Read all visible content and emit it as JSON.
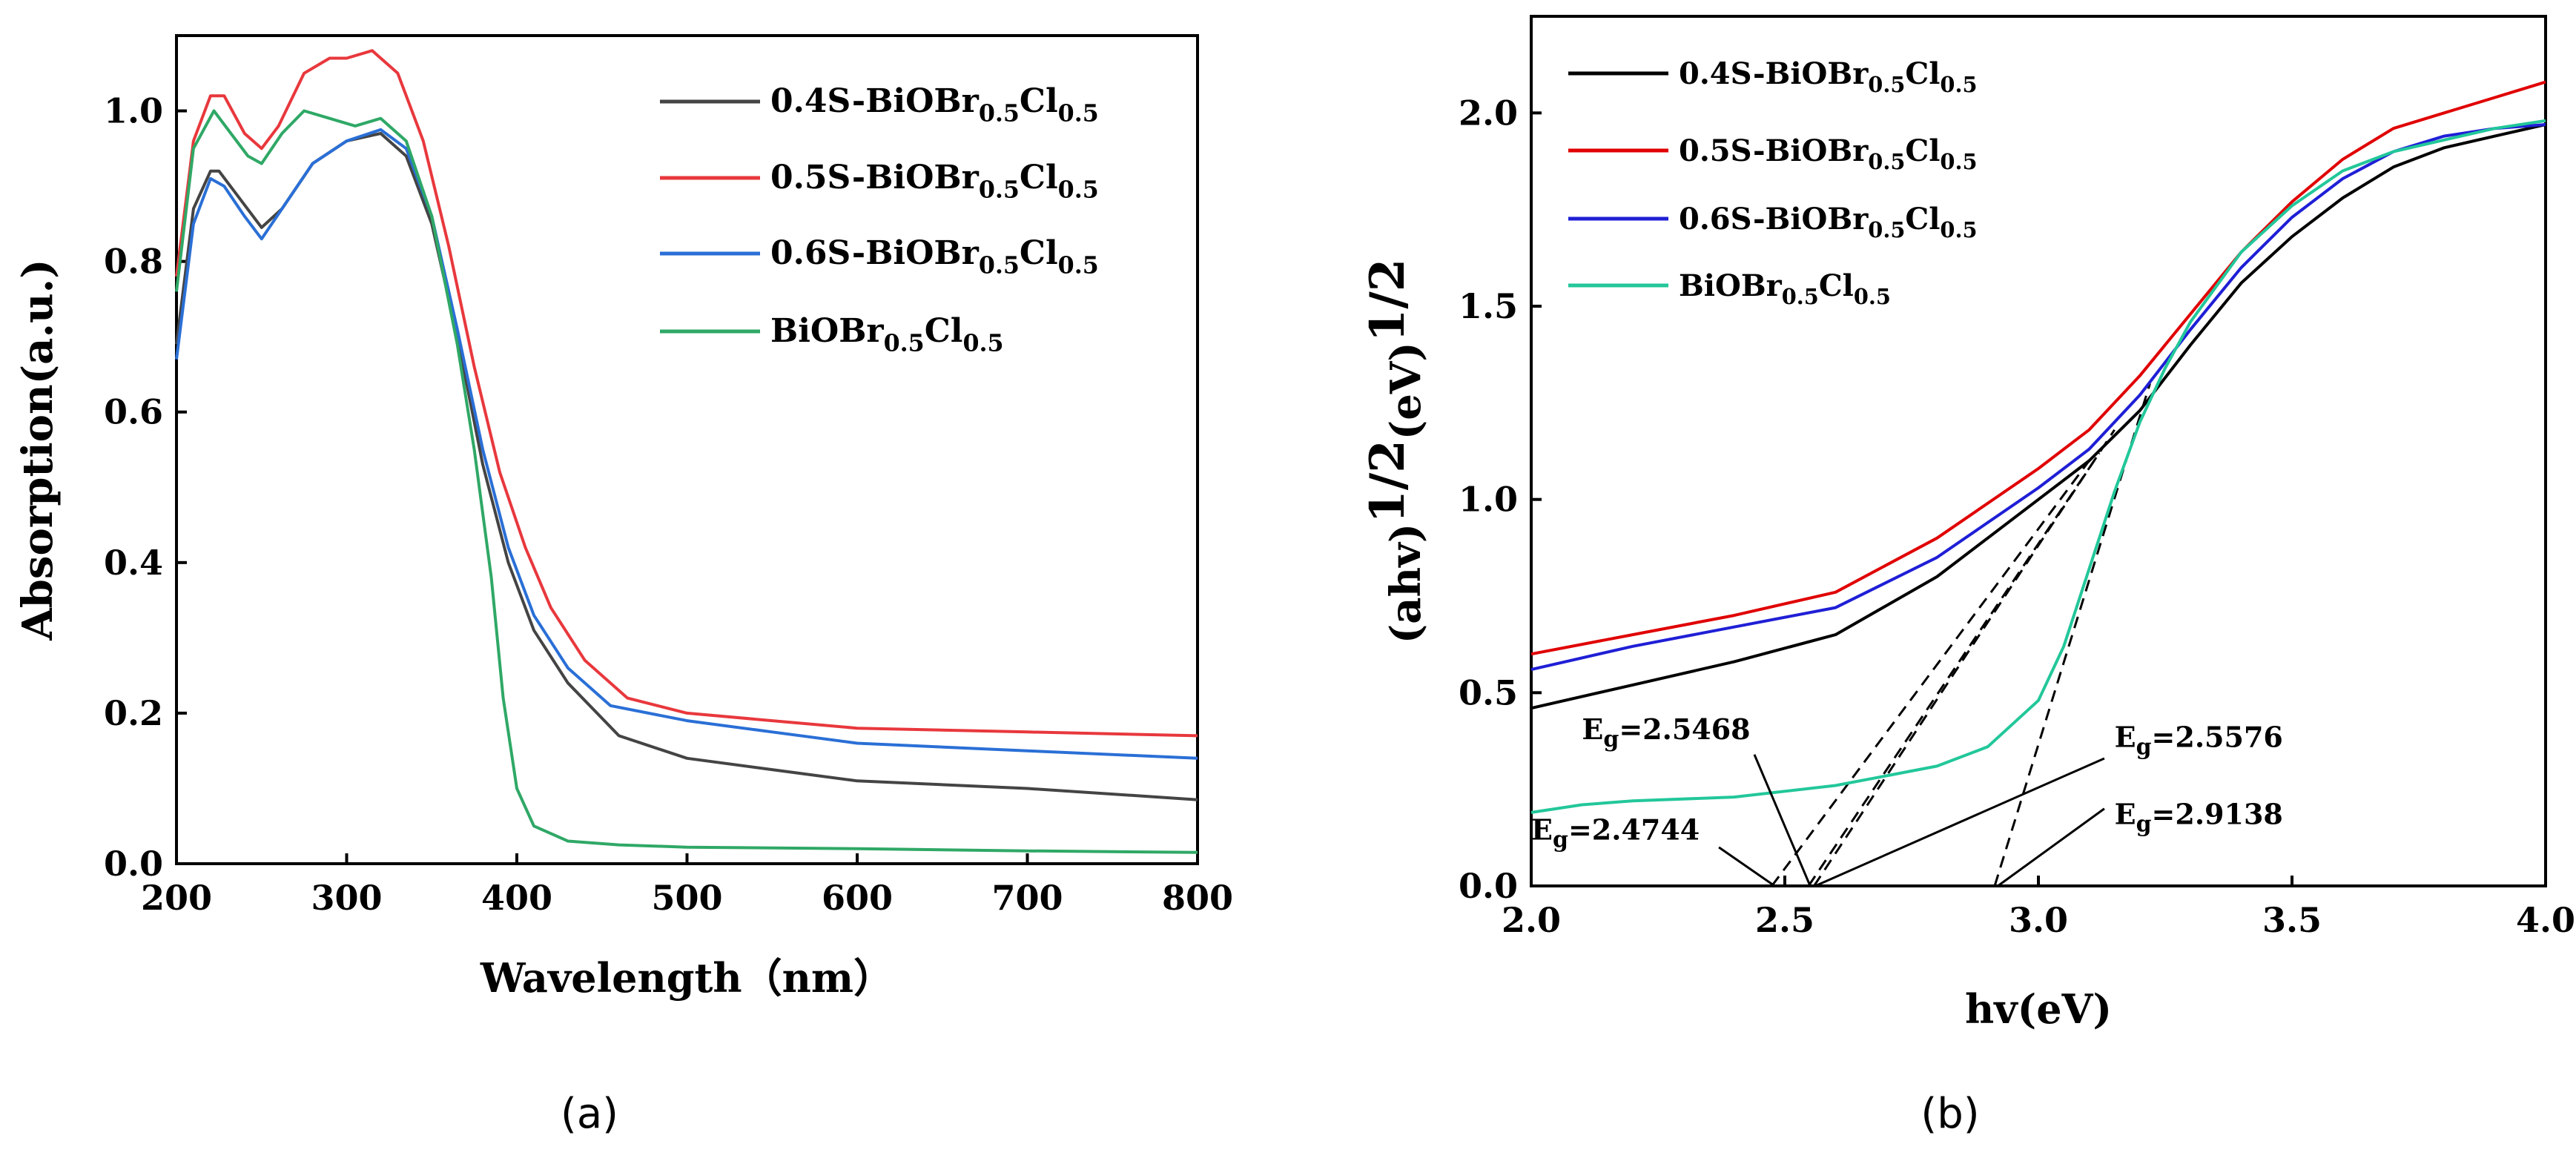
{
  "panels": [
    {
      "id": "a",
      "caption": "(a)",
      "chart_data": {
        "type": "line",
        "title": "",
        "xlabel": "Wavelength（nm）",
        "ylabel": "Absorption(a.u.)",
        "xlim": [
          200,
          800
        ],
        "ylim": [
          0,
          1.1
        ],
        "xticks": [
          200,
          300,
          400,
          500,
          600,
          700,
          800
        ],
        "xtick_labels": [
          "200",
          "300",
          "400",
          "500",
          "600",
          "700",
          "800"
        ],
        "yticks": [
          0,
          0.2,
          0.4,
          0.6,
          0.8,
          1.0
        ],
        "ytick_labels": [
          "0.0",
          "0.2",
          "0.4",
          "0.6",
          "0.8",
          "1.0"
        ],
        "legend_position": "top-right",
        "series": [
          {
            "name": "0.4S-BiOBr0.5Cl0.5",
            "label_base": "0.4S-BiOBr",
            "sub1": "0.5",
            "mid": "Cl",
            "sub2": "0.5",
            "color": "#444444",
            "x": [
              200,
              210,
              220,
              225,
              235,
              250,
              262,
              280,
              300,
              320,
              335,
              350,
              365,
              380,
              395,
              410,
              430,
              460,
              500,
              550,
              600,
              700,
              800
            ],
            "y": [
              0.69,
              0.87,
              0.92,
              0.92,
              0.89,
              0.845,
              0.87,
              0.93,
              0.96,
              0.97,
              0.94,
              0.85,
              0.7,
              0.53,
              0.4,
              0.31,
              0.24,
              0.17,
              0.14,
              0.125,
              0.11,
              0.1,
              0.085
            ]
          },
          {
            "name": "0.5S-BiOBr0.5Cl0.5",
            "label_base": "0.5S-BiOBr",
            "sub1": "0.5",
            "mid": "Cl",
            "sub2": "0.5",
            "color": "#e8383d",
            "x": [
              200,
              210,
              220,
              228,
              240,
              250,
              260,
              275,
              290,
              300,
              315,
              330,
              345,
              360,
              375,
              390,
              405,
              420,
              440,
              465,
              500,
              550,
              600,
              700,
              800
            ],
            "y": [
              0.78,
              0.96,
              1.02,
              1.02,
              0.97,
              0.95,
              0.98,
              1.05,
              1.07,
              1.07,
              1.08,
              1.05,
              0.96,
              0.82,
              0.66,
              0.52,
              0.42,
              0.34,
              0.27,
              0.22,
              0.2,
              0.19,
              0.18,
              0.175,
              0.17
            ]
          },
          {
            "name": "0.6S-BiOBr0.5Cl0.5",
            "label_base": "0.6S-BiOBr",
            "sub1": "0.5",
            "mid": "Cl",
            "sub2": "0.5",
            "color": "#2a6fd6",
            "x": [
              200,
              210,
              220,
              228,
              240,
              250,
              262,
              280,
              300,
              320,
              335,
              350,
              365,
              380,
              395,
              410,
              430,
              455,
              500,
              550,
              600,
              700,
              800
            ],
            "y": [
              0.67,
              0.85,
              0.91,
              0.9,
              0.86,
              0.83,
              0.87,
              0.93,
              0.96,
              0.975,
              0.95,
              0.86,
              0.71,
              0.55,
              0.42,
              0.33,
              0.26,
              0.21,
              0.19,
              0.175,
              0.16,
              0.15,
              0.14
            ]
          },
          {
            "name": "BiOBr0.5Cl0.5",
            "label_base": "BiOBr",
            "sub1": "0.5",
            "mid": "Cl",
            "sub2": "0.5",
            "color": "#2fa866",
            "x": [
              200,
              210,
              222,
              232,
              242,
              250,
              262,
              275,
              290,
              305,
              320,
              335,
              350,
              365,
              375,
              385,
              392,
              400,
              410,
              430,
              460,
              500,
              600,
              700,
              800
            ],
            "y": [
              0.76,
              0.95,
              1.0,
              0.97,
              0.94,
              0.93,
              0.97,
              1.0,
              0.99,
              0.98,
              0.99,
              0.96,
              0.86,
              0.69,
              0.55,
              0.38,
              0.22,
              0.1,
              0.05,
              0.03,
              0.025,
              0.022,
              0.02,
              0.017,
              0.015
            ]
          }
        ]
      }
    },
    {
      "id": "b",
      "caption": "(b)",
      "chart_data": {
        "type": "line",
        "title": "",
        "xlabel": "hv(eV)",
        "ylabel_base": "(ahv)",
        "ylabel_sup1": "1/2",
        "ylabel_mid": "(eV)",
        "ylabel_sup2": "1/2",
        "xlim": [
          2.0,
          4.0
        ],
        "ylim": [
          0,
          2.25
        ],
        "xticks": [
          2.0,
          2.5,
          3.0,
          3.5,
          4.0
        ],
        "xtick_labels": [
          "2.0",
          "2.5",
          "3.0",
          "3.5",
          "4.0"
        ],
        "yticks": [
          0,
          0.5,
          1.0,
          1.5,
          2.0
        ],
        "ytick_labels": [
          "0.0",
          "0.5",
          "1.0",
          "1.5",
          "2.0"
        ],
        "legend_position": "top-left",
        "series": [
          {
            "name": "0.4S-BiOBr0.5Cl0.5",
            "label_base": "0.4S-BiOBr",
            "sub1": "0.5",
            "mid": "Cl",
            "sub2": "0.5",
            "color": "#000000",
            "x": [
              2.0,
              2.2,
              2.4,
              2.6,
              2.8,
              2.9,
              3.0,
              3.1,
              3.2,
              3.3,
              3.4,
              3.5,
              3.6,
              3.7,
              3.8,
              3.9,
              4.0
            ],
            "y": [
              0.46,
              0.52,
              0.58,
              0.65,
              0.8,
              0.9,
              1.0,
              1.1,
              1.23,
              1.4,
              1.56,
              1.68,
              1.78,
              1.86,
              1.91,
              1.94,
              1.97
            ]
          },
          {
            "name": "0.5S-BiOBr0.5Cl0.5",
            "label_base": "0.5S-BiOBr",
            "sub1": "0.5",
            "mid": "Cl",
            "sub2": "0.5",
            "color": "#e00000",
            "x": [
              2.0,
              2.2,
              2.4,
              2.6,
              2.8,
              2.9,
              3.0,
              3.1,
              3.2,
              3.3,
              3.4,
              3.5,
              3.6,
              3.7,
              3.8,
              3.9,
              4.0
            ],
            "y": [
              0.6,
              0.65,
              0.7,
              0.76,
              0.9,
              0.99,
              1.08,
              1.18,
              1.32,
              1.48,
              1.64,
              1.77,
              1.88,
              1.96,
              2.0,
              2.04,
              2.08
            ]
          },
          {
            "name": "0.6S-BiOBr0.5Cl0.5",
            "label_base": "0.6S-BiOBr",
            "sub1": "0.5",
            "mid": "Cl",
            "sub2": "0.5",
            "color": "#1f1fd6",
            "x": [
              2.0,
              2.2,
              2.4,
              2.6,
              2.8,
              2.9,
              3.0,
              3.1,
              3.2,
              3.3,
              3.4,
              3.5,
              3.6,
              3.7,
              3.8,
              3.9,
              4.0
            ],
            "y": [
              0.56,
              0.62,
              0.67,
              0.72,
              0.85,
              0.94,
              1.03,
              1.13,
              1.27,
              1.44,
              1.6,
              1.73,
              1.83,
              1.9,
              1.94,
              1.96,
              1.97
            ]
          },
          {
            "name": "BiOBr0.5Cl0.5",
            "label_base": "BiOBr",
            "sub1": "0.5",
            "mid": "Cl",
            "sub2": "0.5",
            "color": "#22c79a",
            "x": [
              2.0,
              2.1,
              2.2,
              2.4,
              2.6,
              2.8,
              2.9,
              3.0,
              3.05,
              3.1,
              3.15,
              3.2,
              3.25,
              3.3,
              3.4,
              3.5,
              3.6,
              3.7,
              3.8,
              3.9,
              4.0
            ],
            "y": [
              0.19,
              0.21,
              0.22,
              0.23,
              0.26,
              0.31,
              0.36,
              0.48,
              0.62,
              0.82,
              1.02,
              1.2,
              1.34,
              1.46,
              1.64,
              1.76,
              1.85,
              1.9,
              1.93,
              1.96,
              1.98
            ]
          }
        ],
        "tangents": [
          {
            "x0": 2.4744,
            "y0": 0,
            "x1": 3.1,
            "y1": 1.1
          },
          {
            "x0": 2.5468,
            "y0": 0,
            "x1": 3.12,
            "y1": 1.12
          },
          {
            "x0": 2.5576,
            "y0": 0,
            "x1": 3.15,
            "y1": 1.18
          },
          {
            "x0": 2.9138,
            "y0": 0,
            "x1": 3.22,
            "y1": 1.3
          }
        ],
        "annotations": [
          {
            "text_base": "E",
            "text_sub": "g",
            "text_rest": "=2.5468",
            "tx": 2.1,
            "ty": 0.38,
            "ax0": 2.44,
            "ay0": 0.34,
            "ax1": 2.55,
            "ay1": 0.0
          },
          {
            "text_base": "E",
            "text_sub": "g",
            "text_rest": "=2.4744",
            "tx": 2.0,
            "ty": 0.12,
            "ax0": 2.37,
            "ay0": 0.1,
            "ax1": 2.48,
            "ay1": 0.0
          },
          {
            "text_base": "E",
            "text_sub": "g",
            "text_rest": "=2.5576",
            "tx": 3.15,
            "ty": 0.36,
            "ax0": 3.13,
            "ay0": 0.33,
            "ax1": 2.56,
            "ay1": 0.0
          },
          {
            "text_base": "E",
            "text_sub": "g",
            "text_rest": "=2.9138",
            "tx": 3.15,
            "ty": 0.16,
            "ax0": 3.13,
            "ay0": 0.2,
            "ax1": 2.92,
            "ay1": 0.0
          }
        ]
      }
    }
  ]
}
